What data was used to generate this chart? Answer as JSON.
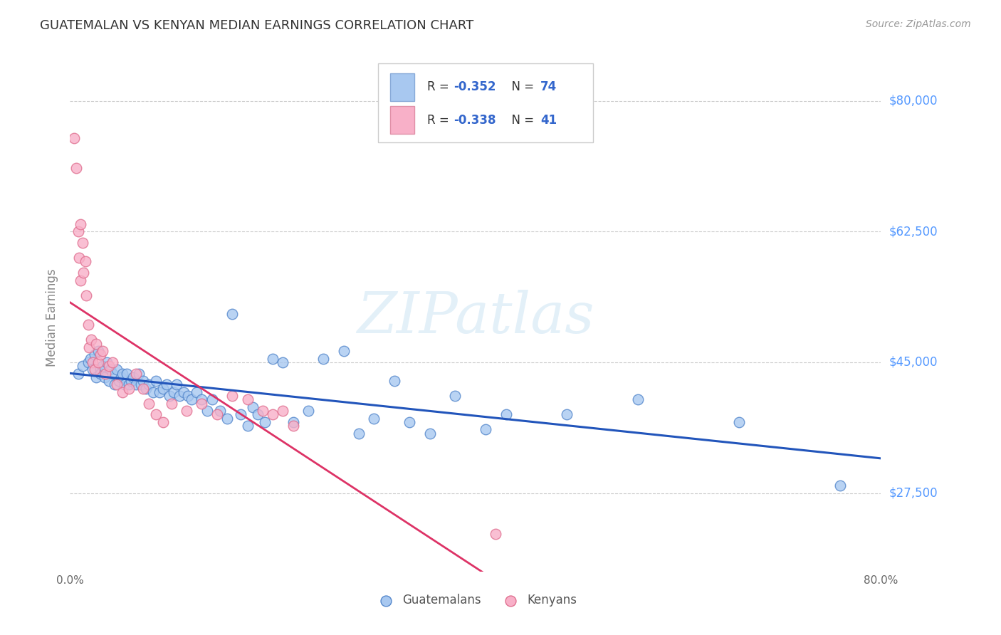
{
  "title": "GUATEMALAN VS KENYAN MEDIAN EARNINGS CORRELATION CHART",
  "source": "Source: ZipAtlas.com",
  "ylabel": "Median Earnings",
  "ytick_labels": [
    "$27,500",
    "$45,000",
    "$62,500",
    "$80,000"
  ],
  "ytick_values": [
    27500,
    45000,
    62500,
    80000
  ],
  "ymin": 17000,
  "ymax": 85000,
  "xmin": 0.0,
  "xmax": 0.8,
  "watermark": "ZIPatlas",
  "legend_label_guatemalans": "Guatemalans",
  "legend_label_kenyans": "Kenyans",
  "blue_scatter_face": "#a8c8f0",
  "blue_scatter_edge": "#5588cc",
  "pink_scatter_face": "#f8b0c8",
  "pink_scatter_edge": "#e07090",
  "blue_line_color": "#2255bb",
  "pink_line_color": "#dd3366",
  "title_color": "#333333",
  "source_color": "#999999",
  "axis_label_color": "#888888",
  "ytick_color": "#5599ff",
  "grid_color": "#cccccc",
  "guatemalans_x": [
    0.008,
    0.012,
    0.018,
    0.02,
    0.022,
    0.024,
    0.026,
    0.028,
    0.03,
    0.03,
    0.032,
    0.034,
    0.036,
    0.038,
    0.04,
    0.042,
    0.044,
    0.046,
    0.048,
    0.05,
    0.052,
    0.054,
    0.056,
    0.058,
    0.06,
    0.062,
    0.065,
    0.068,
    0.07,
    0.072,
    0.075,
    0.078,
    0.082,
    0.085,
    0.088,
    0.092,
    0.095,
    0.098,
    0.102,
    0.105,
    0.108,
    0.112,
    0.116,
    0.12,
    0.125,
    0.13,
    0.135,
    0.14,
    0.148,
    0.155,
    0.16,
    0.168,
    0.175,
    0.18,
    0.185,
    0.192,
    0.2,
    0.21,
    0.22,
    0.235,
    0.25,
    0.27,
    0.285,
    0.3,
    0.32,
    0.335,
    0.355,
    0.38,
    0.41,
    0.43,
    0.49,
    0.56,
    0.66,
    0.76
  ],
  "guatemalans_y": [
    43500,
    44500,
    45000,
    45500,
    44000,
    46000,
    43000,
    46500,
    44000,
    43500,
    44500,
    43000,
    45000,
    42500,
    44000,
    43500,
    42000,
    44000,
    42500,
    43000,
    43500,
    42000,
    43500,
    42000,
    42500,
    43000,
    42000,
    43500,
    42000,
    42500,
    41500,
    42000,
    41000,
    42500,
    41000,
    41500,
    42000,
    40500,
    41000,
    42000,
    40500,
    41000,
    40500,
    40000,
    41000,
    40000,
    38500,
    40000,
    38500,
    37500,
    51500,
    38000,
    36500,
    39000,
    38000,
    37000,
    45500,
    45000,
    37000,
    38500,
    45500,
    46500,
    35500,
    37500,
    42500,
    37000,
    35500,
    40500,
    36000,
    38000,
    38000,
    40000,
    37000,
    28500
  ],
  "kenyans_x": [
    0.004,
    0.006,
    0.008,
    0.009,
    0.01,
    0.01,
    0.012,
    0.013,
    0.015,
    0.016,
    0.018,
    0.019,
    0.021,
    0.022,
    0.024,
    0.026,
    0.028,
    0.03,
    0.032,
    0.035,
    0.038,
    0.042,
    0.046,
    0.052,
    0.058,
    0.065,
    0.072,
    0.078,
    0.085,
    0.092,
    0.1,
    0.115,
    0.13,
    0.145,
    0.16,
    0.175,
    0.19,
    0.2,
    0.21,
    0.22,
    0.42
  ],
  "kenyans_y": [
    75000,
    71000,
    62500,
    59000,
    56000,
    63500,
    61000,
    57000,
    58500,
    54000,
    50000,
    47000,
    48000,
    45000,
    44000,
    47500,
    45000,
    46000,
    46500,
    43500,
    44500,
    45000,
    42000,
    41000,
    41500,
    43500,
    41500,
    39500,
    38000,
    37000,
    39500,
    38500,
    39500,
    38000,
    40500,
    40000,
    38500,
    38000,
    38500,
    36500,
    22000
  ]
}
